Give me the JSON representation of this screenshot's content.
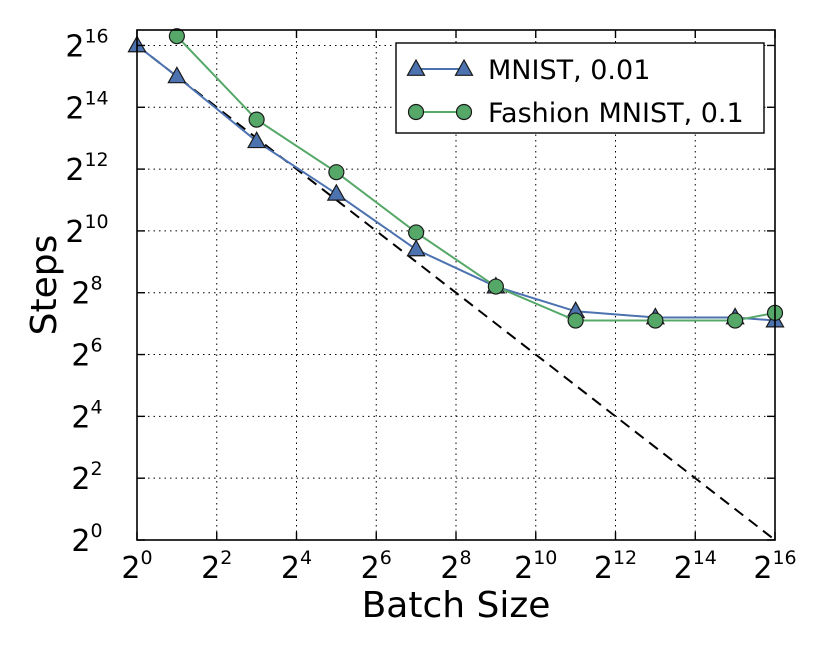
{
  "chart_data": {
    "type": "line",
    "xlabel": "Batch Size",
    "ylabel": "Steps",
    "x_scale": "log2",
    "y_scale": "log2",
    "xlim_exp2": [
      0,
      16
    ],
    "ylim_exp2": [
      0,
      16.5
    ],
    "x_tick_exponents": [
      0,
      2,
      4,
      6,
      8,
      10,
      12,
      14,
      16
    ],
    "y_tick_exponents": [
      0,
      2,
      4,
      6,
      8,
      10,
      12,
      14,
      16
    ],
    "tick_base": "2",
    "grid": true,
    "legend_position": "top-right",
    "series": [
      {
        "name": "MNIST, 0.01",
        "color": "#4c72b0",
        "marker": "triangle",
        "x_exp2": [
          0,
          1,
          3,
          5,
          7,
          9,
          11,
          13,
          15,
          16
        ],
        "y_exp2": [
          16.0,
          15.0,
          12.9,
          11.2,
          9.4,
          8.2,
          7.4,
          7.2,
          7.2,
          7.1
        ]
      },
      {
        "name": "Fashion MNIST, 0.1",
        "color": "#55a868",
        "marker": "circle",
        "x_exp2": [
          1,
          3,
          5,
          7,
          9,
          11,
          13,
          15,
          16
        ],
        "y_exp2": [
          16.3,
          13.6,
          11.9,
          9.95,
          8.2,
          7.1,
          7.1,
          7.1,
          7.35
        ]
      }
    ],
    "reference_line": {
      "style": "dashed",
      "color": "#000000",
      "x_exp2": [
        0,
        16
      ],
      "y_exp2": [
        16.0,
        0.0
      ]
    }
  }
}
